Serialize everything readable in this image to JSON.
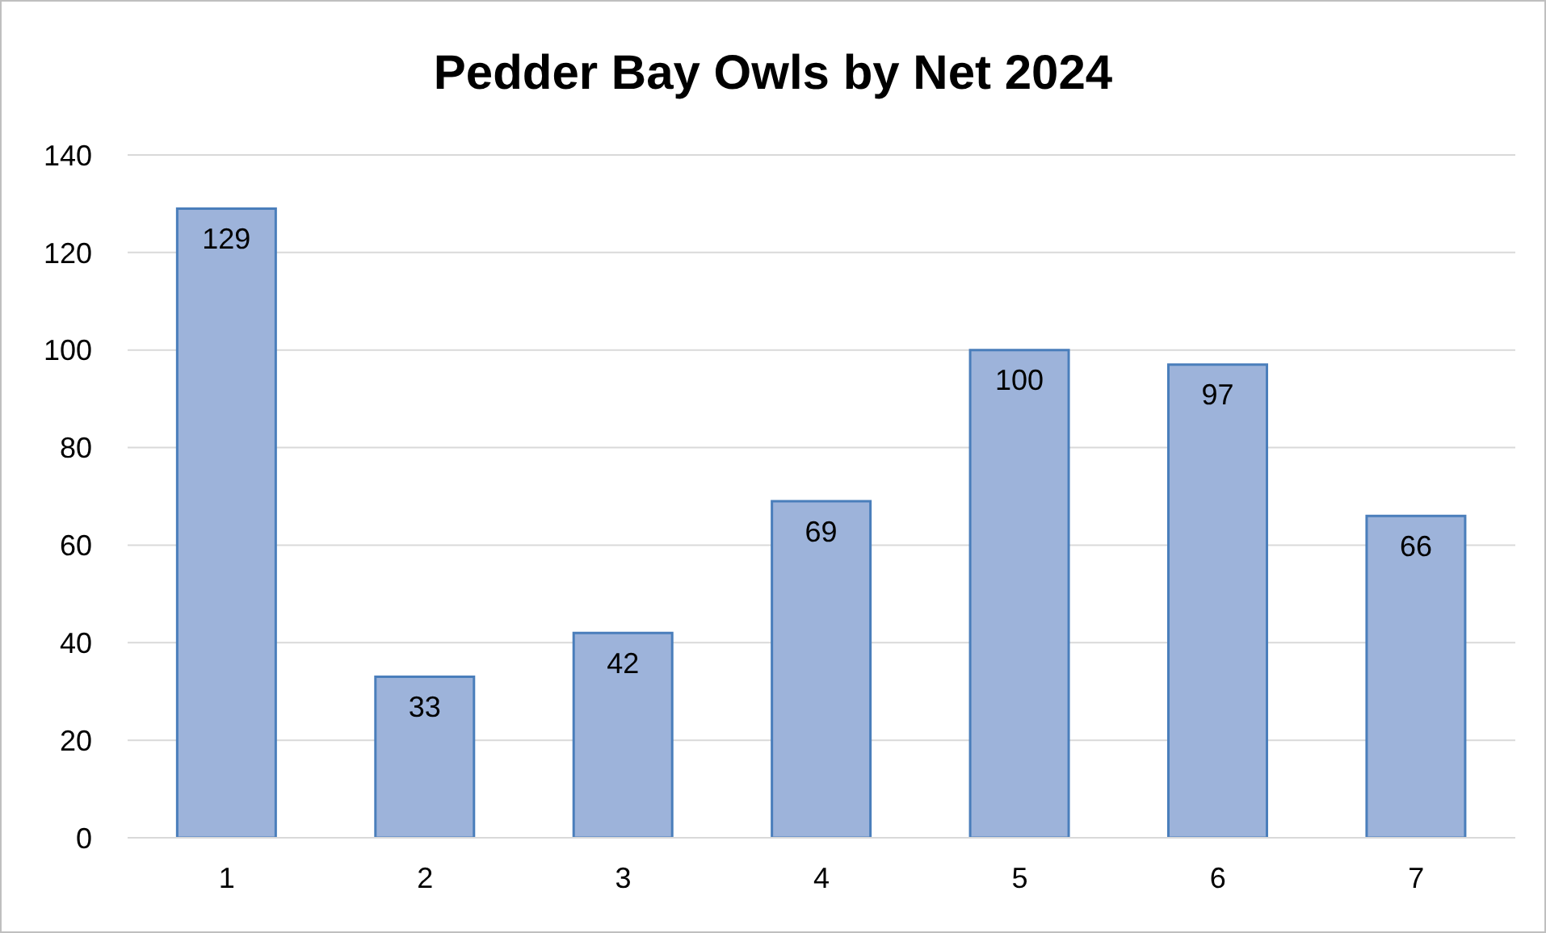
{
  "chart_data": {
    "type": "bar",
    "title": "Pedder Bay Owls by Net 2024",
    "categories": [
      "1",
      "2",
      "3",
      "4",
      "5",
      "6",
      "7"
    ],
    "values": [
      129,
      33,
      42,
      69,
      100,
      97,
      66
    ],
    "color": "#9db3da",
    "ylim": [
      0,
      140
    ],
    "yticks": [
      0,
      20,
      40,
      60,
      80,
      100,
      120,
      140
    ],
    "grid": "y",
    "data_labels": true
  }
}
